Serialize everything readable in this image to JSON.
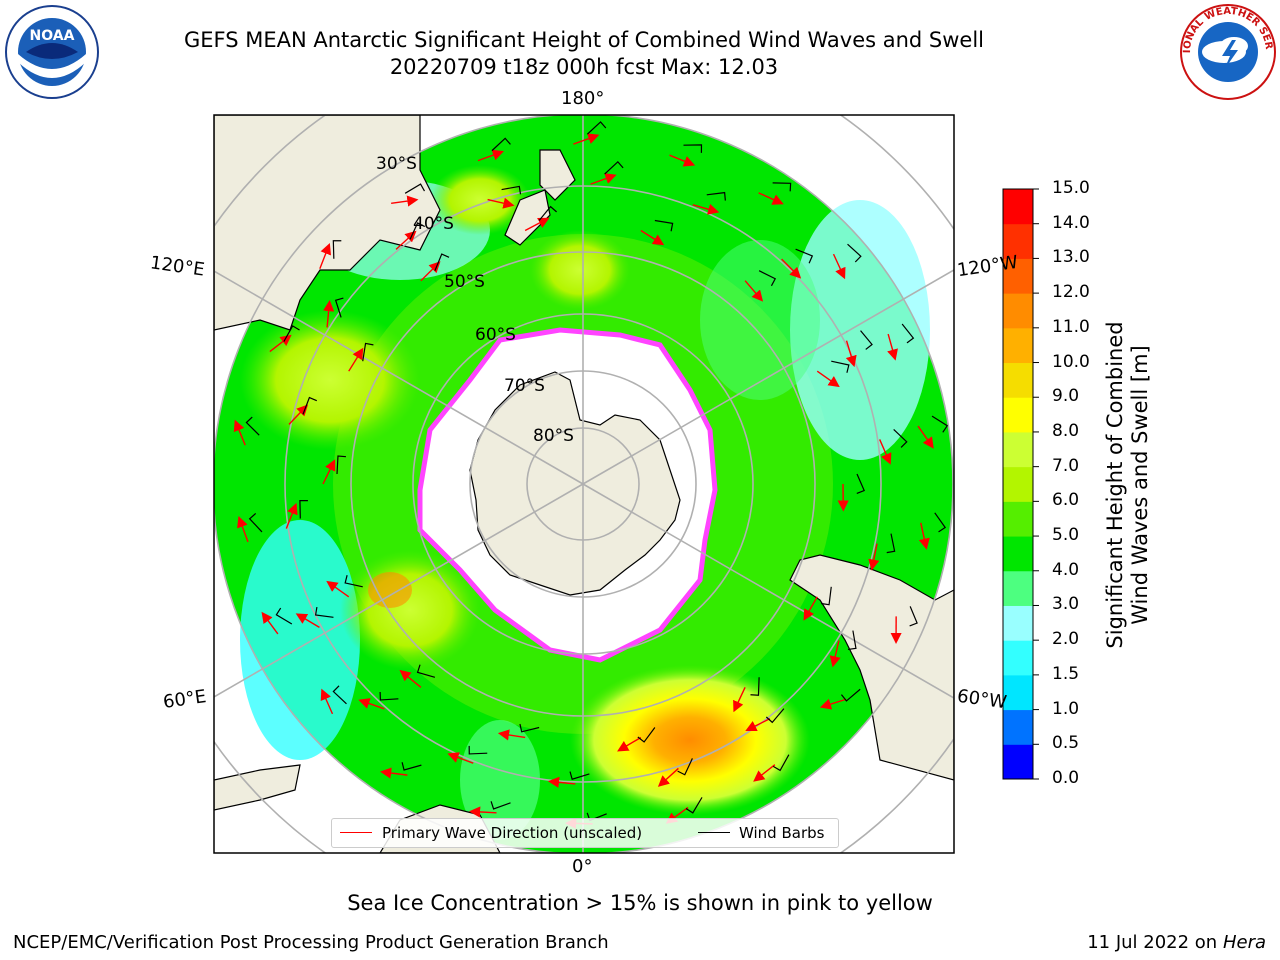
{
  "title": {
    "line1": "GEFS MEAN Antarctic Significant Height of Combined Wind Waves and Swell",
    "line2": "20220709 t18z 000h fcst   Max: 12.03"
  },
  "logos": {
    "left": "NOAA",
    "right": "NATIONAL WEATHER SERVICE"
  },
  "longitude_labels": {
    "top": "180°",
    "bottom": "0°",
    "left_upper": "120°E",
    "left_lower": "60°E",
    "right_upper": "120°W",
    "right_lower": "60°W"
  },
  "latitude_labels": [
    "30°S",
    "40°S",
    "50°S",
    "60°S",
    "70°S",
    "80°S"
  ],
  "colorbar": {
    "title_line1": "Significant Height of Combined",
    "title_line2": "Wind Waves and Swell [m]",
    "ticks": [
      "0.0",
      "0.5",
      "1.0",
      "1.5",
      "2.0",
      "3.0",
      "4.0",
      "5.0",
      "6.0",
      "7.0",
      "8.0",
      "9.0",
      "10.0",
      "11.0",
      "12.0",
      "13.0",
      "14.0",
      "15.0"
    ],
    "colors": [
      "#0000ff",
      "#0073ff",
      "#00e6ff",
      "#33ffff",
      "#99ffff",
      "#4dff80",
      "#00e600",
      "#55ee00",
      "#b3f500",
      "#ccff33",
      "#ffff00",
      "#f5dd00",
      "#ffb000",
      "#ff8c00",
      "#ff6000",
      "#ff3000",
      "#ff0000"
    ]
  },
  "legend": {
    "wave_label": "Primary Wave Direction (unscaled)",
    "barb_label": "Wind Barbs",
    "wave_color": "#ff0000",
    "barb_color": "#000000"
  },
  "note": "Sea Ice Concentration > 15% is shown in pink to yellow",
  "footer": {
    "left": "NCEP/EMC/Verification Post Processing Product Generation Branch",
    "right_date": "11 Jul 2022 on ",
    "right_host": "Hera"
  },
  "colors": {
    "land": "#efedde",
    "ice_edge": "#ff44ff",
    "grid": "#b0b0b0"
  }
}
